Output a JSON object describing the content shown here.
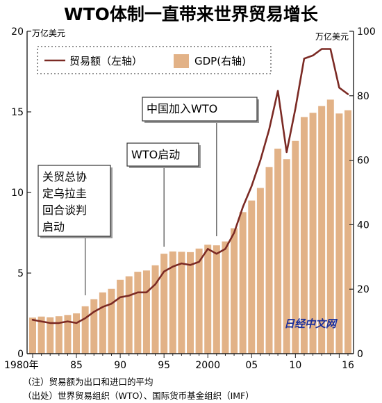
{
  "title": "WTO体制一直带来世界贸易增长",
  "watermark": "日经中文网",
  "notes": [
    "（注）贸易额为出口和进口的平均",
    "（出处）世界贸易组织（WTO）、国际货币基金组织（IMF）"
  ],
  "colors": {
    "trade_line": "#7b2a24",
    "gdp_bar": "#e2b287",
    "axis": "#222222",
    "watermark": "#1a2f9c"
  },
  "chart_data": {
    "type": "bar+line",
    "title": "WTO体制一直带来世界贸易增长",
    "x_tick_labels": [
      "1980年",
      "85",
      "90",
      "95",
      "2000",
      "05",
      "10",
      "16"
    ],
    "x": [
      1980,
      1981,
      1982,
      1983,
      1984,
      1985,
      1986,
      1987,
      1988,
      1989,
      1990,
      1991,
      1992,
      1993,
      1994,
      1995,
      1996,
      1997,
      1998,
      1999,
      2000,
      2001,
      2002,
      2003,
      2004,
      2005,
      2006,
      2007,
      2008,
      2009,
      2010,
      2011,
      2012,
      2013,
      2014,
      2015,
      2016
    ],
    "left_axis": {
      "unit": "万亿美元",
      "ylim": [
        0,
        20
      ],
      "ticks": [
        "0",
        "5",
        "10",
        "15",
        "20"
      ]
    },
    "right_axis": {
      "unit": "万亿美元",
      "ylim": [
        0,
        100
      ],
      "ticks": [
        "0",
        "20",
        "40",
        "60",
        "80",
        "100"
      ]
    },
    "series": [
      {
        "name": "贸易额（左轴）",
        "type": "line",
        "axis": "left",
        "values": [
          2.1,
          2.0,
          1.9,
          1.9,
          2.0,
          1.9,
          2.2,
          2.6,
          2.9,
          3.1,
          3.5,
          3.6,
          3.8,
          3.8,
          4.3,
          5.1,
          5.4,
          5.6,
          5.5,
          5.7,
          6.5,
          6.2,
          6.5,
          7.5,
          9.1,
          10.4,
          12.0,
          13.9,
          16.3,
          12.5,
          15.2,
          18.3,
          18.5,
          18.9,
          18.9,
          16.5,
          16.1
        ]
      },
      {
        "name": "GDP(右轴)",
        "type": "bar",
        "axis": "right",
        "values": [
          11.2,
          11.5,
          11.3,
          11.6,
          12.0,
          12.5,
          14.7,
          16.9,
          19.0,
          20.1,
          22.9,
          24.0,
          25.4,
          25.8,
          27.4,
          31.0,
          31.7,
          31.6,
          31.5,
          32.6,
          33.8,
          33.6,
          34.8,
          38.9,
          43.9,
          47.5,
          51.4,
          57.9,
          63.6,
          60.3,
          66.0,
          73.4,
          74.7,
          76.8,
          78.8,
          74.5,
          75.5
        ]
      }
    ],
    "legend": {
      "position": "top-left",
      "entries": [
        "贸易额（左轴）",
        "GDP(右轴)"
      ]
    },
    "annotations": [
      {
        "id": "uruguay",
        "lines": [
          "关贸总协",
          "定乌拉圭",
          "回合谈判",
          "启动"
        ],
        "year": 1986
      },
      {
        "id": "wto-start",
        "lines": [
          "WTO启动"
        ],
        "year": 1995
      },
      {
        "id": "china-wto",
        "lines": [
          "中国加入WTO"
        ],
        "year": 2001
      }
    ]
  }
}
